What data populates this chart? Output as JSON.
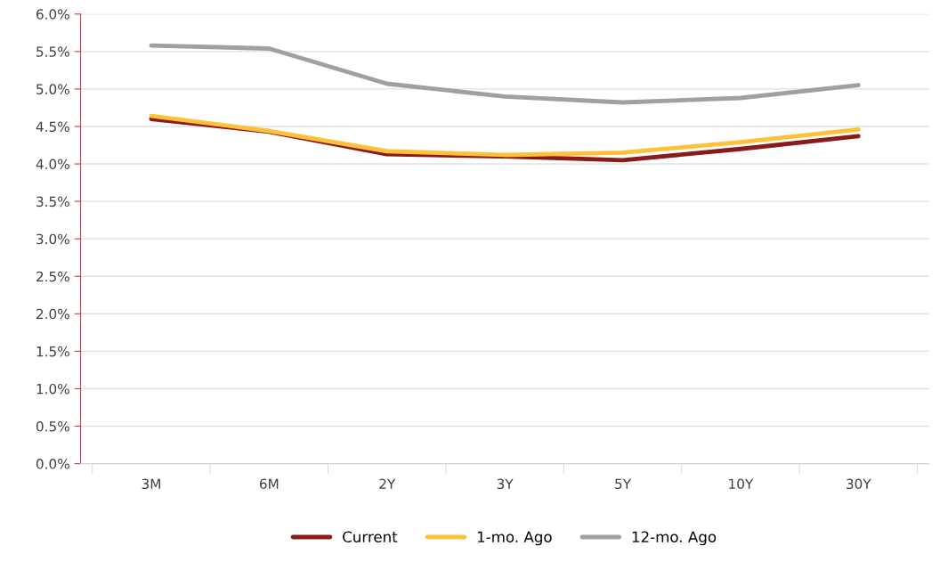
{
  "chart_data": {
    "type": "line",
    "categories": [
      "3M",
      "6M",
      "2Y",
      "3Y",
      "5Y",
      "10Y",
      "30Y"
    ],
    "series": [
      {
        "name": "Current",
        "color": "#8b1a1a",
        "values": [
          4.6,
          4.43,
          4.13,
          4.1,
          4.05,
          4.2,
          4.37
        ]
      },
      {
        "name": "1-mo. Ago",
        "color": "#ffc03a",
        "values": [
          4.64,
          4.44,
          4.17,
          4.12,
          4.15,
          4.29,
          4.46
        ]
      },
      {
        "name": "12-mo. Ago",
        "color": "#a0a0a0",
        "values": [
          5.58,
          5.54,
          5.07,
          4.9,
          4.82,
          4.88,
          5.05
        ]
      }
    ],
    "ylim": [
      0,
      6
    ],
    "yticks": [
      {
        "value": 0,
        "label": "0.0%"
      },
      {
        "value": 0.5,
        "label": "0.5%"
      },
      {
        "value": 1,
        "label": "1.0%"
      },
      {
        "value": 1.5,
        "label": "1.5%"
      },
      {
        "value": 2,
        "label": "2.0%"
      },
      {
        "value": 2.5,
        "label": "2.5%"
      },
      {
        "value": 3,
        "label": "3.0%"
      },
      {
        "value": 3.5,
        "label": "3.5%"
      },
      {
        "value": 4,
        "label": "4.0%"
      },
      {
        "value": 4.5,
        "label": "4.5%"
      },
      {
        "value": 5,
        "label": "5.0%"
      },
      {
        "value": 5.5,
        "label": "5.5%"
      },
      {
        "value": 6,
        "label": "6.0%"
      }
    ],
    "grid": "y",
    "legend": "bottom",
    "marker": "none",
    "line_style": "solid"
  }
}
